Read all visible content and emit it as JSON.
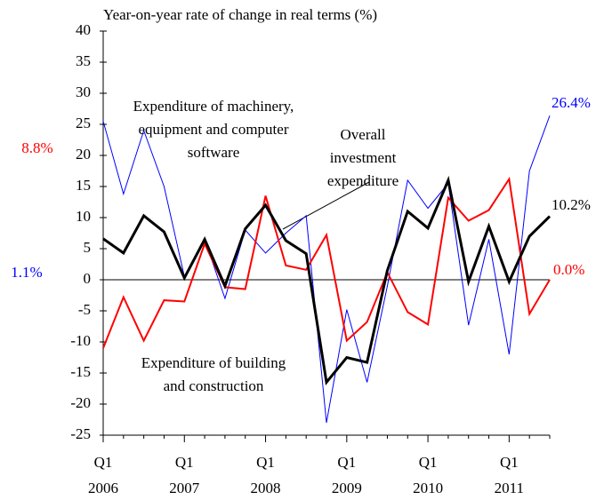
{
  "chart_data": {
    "type": "line",
    "title": "Year-on-year rate of change in real terms (%)",
    "categories": [
      "Q1",
      null,
      null,
      null,
      "Q1",
      null,
      null,
      null,
      "Q1",
      null,
      null,
      null,
      "Q1",
      null,
      null,
      null,
      "Q1",
      null,
      null,
      null,
      "Q1",
      null,
      null
    ],
    "years": [
      "2006",
      "2007",
      "2008",
      "2009",
      "2010",
      "2011"
    ],
    "ylim": [
      -25,
      40
    ],
    "yticks": [
      -25,
      -20,
      -15,
      -10,
      -5,
      0,
      5,
      10,
      15,
      20,
      25,
      30,
      35,
      40
    ],
    "series": [
      {
        "label_lines": [
          "Expenditure of machinery,",
          "equipment and computer",
          "software"
        ],
        "color": "#0000ff",
        "width": 1,
        "values": [
          25.5,
          13.8,
          24,
          15,
          0.5,
          6.5,
          -3,
          8,
          4.3,
          7.5,
          10.3,
          -23,
          -4.8,
          -16.5,
          -1,
          16,
          11.5,
          15.5,
          -7.3,
          6.5,
          -12,
          17.5,
          26.4
        ]
      },
      {
        "label_lines": [
          "Expenditure of building",
          "and construction"
        ],
        "color": "#ff0000",
        "width": 2,
        "values": [
          -11,
          -2.8,
          -9.8,
          -3.3,
          -3.5,
          5.8,
          -1.2,
          -1.5,
          13.5,
          2.3,
          1.6,
          7.2,
          -9.8,
          -6.8,
          1.2,
          -5.2,
          -7.2,
          13.2,
          9.5,
          11.2,
          16.2,
          -5.5,
          0.0
        ]
      },
      {
        "label_lines": [
          "Overall",
          "investment",
          "expenditure"
        ],
        "color": "#000000",
        "width": 3,
        "values": [
          6.6,
          4.3,
          10.3,
          7.7,
          0.3,
          6.5,
          -1,
          8.2,
          12,
          6.3,
          4.2,
          -16.5,
          -12.5,
          -13.3,
          1.5,
          11,
          8.3,
          16,
          -0.3,
          8.6,
          -0.3,
          7,
          10.2
        ]
      }
    ],
    "annotations": [
      {
        "text": "8.8%",
        "color": "#ff0000"
      },
      {
        "text": "1.1%",
        "color": "#0000ff"
      },
      {
        "text": "26.4%",
        "color": "#0000ff"
      },
      {
        "text": "10.2%",
        "color": "#000000"
      },
      {
        "text": "0.0%",
        "color": "#ff0000"
      }
    ]
  }
}
